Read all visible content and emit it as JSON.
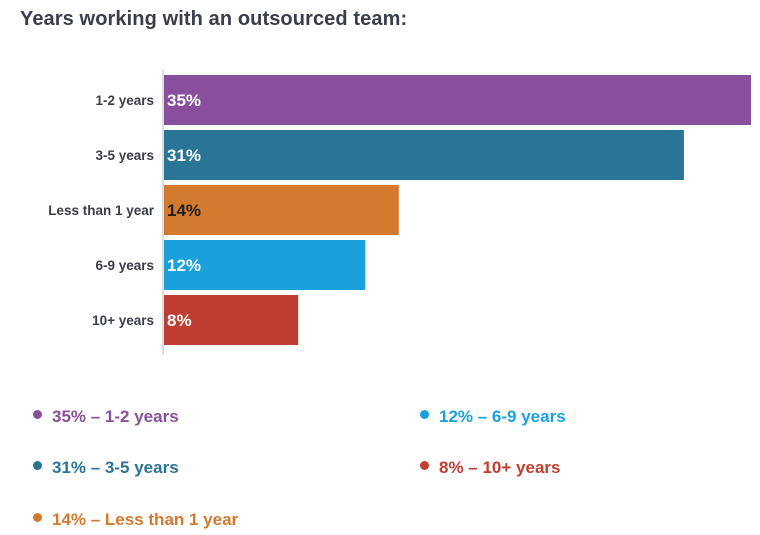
{
  "title": "Years working with an outsourced team:",
  "chart_data": {
    "type": "bar",
    "orientation": "horizontal",
    "categories": [
      "1-2 years",
      "3-5 years",
      "Less than 1 year",
      "6-9 years",
      "10+ years"
    ],
    "values": [
      35,
      31,
      14,
      12,
      8
    ],
    "value_labels": [
      "35%",
      "31%",
      "14%",
      "12%",
      "8%"
    ],
    "colors": [
      "#8a4f9c",
      "#2a7496",
      "#d27a2d",
      "#1aa1dc",
      "#bf3e33"
    ],
    "label_colors": [
      "#ffffff",
      "#ffffff",
      "#1f1f1f",
      "#ffffff",
      "#ffffff"
    ],
    "xlim": [
      0,
      35
    ]
  },
  "legend": [
    {
      "text": "35% – 1-2 years",
      "color": "#8a4f9c"
    },
    {
      "text": "31% – 3-5 years",
      "color": "#2a7496"
    },
    {
      "text": "14% – Less than 1 year",
      "color": "#d27a2d"
    },
    {
      "text": "12% – 6-9 years",
      "color": "#1aa1dc"
    },
    {
      "text": "8% – 10+ years",
      "color": "#bf3e33"
    }
  ]
}
